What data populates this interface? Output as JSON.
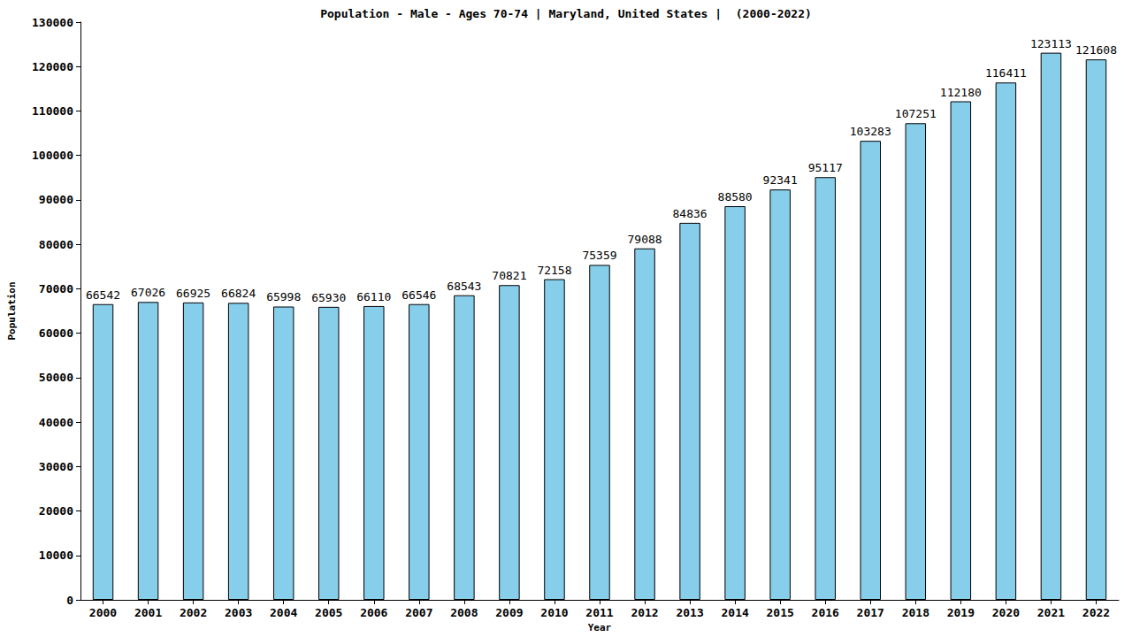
{
  "chart_data": {
    "type": "bar",
    "title": "Population - Male - Ages 70-74 | Maryland, United States |  (2000-2022)",
    "xlabel": "Year",
    "ylabel": "Population",
    "categories": [
      "2000",
      "2001",
      "2002",
      "2003",
      "2004",
      "2005",
      "2006",
      "2007",
      "2008",
      "2009",
      "2010",
      "2011",
      "2012",
      "2013",
      "2014",
      "2015",
      "2016",
      "2017",
      "2018",
      "2019",
      "2020",
      "2021",
      "2022"
    ],
    "values": [
      66542,
      67026,
      66925,
      66824,
      65998,
      65930,
      66110,
      66546,
      68543,
      70821,
      72158,
      75359,
      79088,
      84836,
      88580,
      92341,
      95117,
      103283,
      107251,
      112180,
      116411,
      123113,
      121608
    ],
    "color": "#87ceeb",
    "ylim": [
      0,
      130000
    ],
    "yticks": [
      0,
      10000,
      20000,
      30000,
      40000,
      50000,
      60000,
      70000,
      80000,
      90000,
      100000,
      110000,
      120000,
      130000
    ],
    "grid": false,
    "data_labels": true
  }
}
